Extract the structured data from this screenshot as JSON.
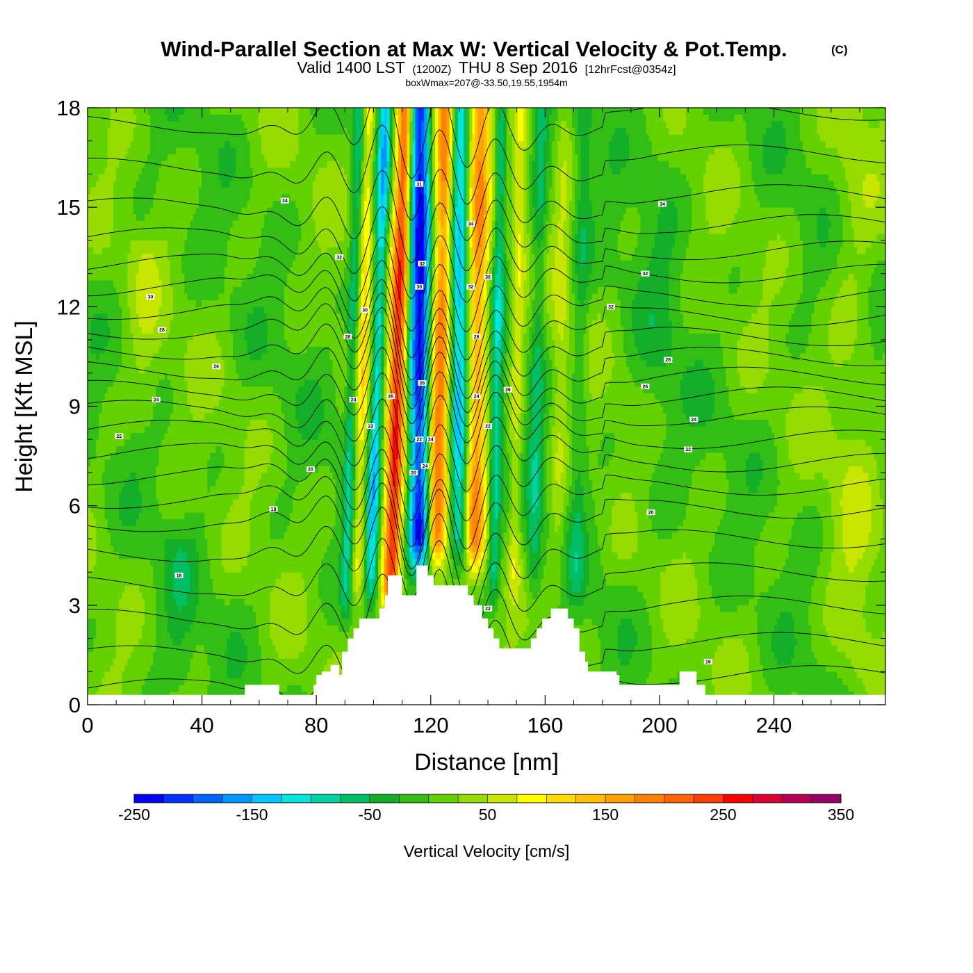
{
  "title": {
    "main": "Wind-Parallel Section at Max W: Vertical Velocity & Pot.Temp.",
    "copyright": "(C)",
    "valid_prefix": "Valid 1400 LST",
    "valid_utc": "(1200Z)",
    "valid_date": "THU 8 Sep 2016",
    "forecast": "[12hrFcst@0354z]",
    "box_wmax": "boxWmax=207@-33.50,19.55,1954m"
  },
  "colors": {
    "contour": "#000000",
    "terrain": "#ffffff",
    "frame": "#000000"
  },
  "chart_data": {
    "type": "heatmap",
    "xlabel": "Distance [nm]",
    "ylabel": "Height [Kft MSL]",
    "xlim": [
      0,
      279
    ],
    "ylim": [
      0,
      18
    ],
    "x_ticks": [
      "0",
      "40",
      "80",
      "120",
      "160",
      "200",
      "240"
    ],
    "y_ticks": [
      "0",
      "3",
      "6",
      "9",
      "12",
      "15",
      "18"
    ],
    "x_tick_values": [
      0,
      40,
      80,
      120,
      160,
      200,
      240
    ],
    "y_tick_values": [
      0,
      3,
      6,
      9,
      12,
      15,
      18
    ],
    "colorbar": {
      "label": "Vertical Velocity [cm/s]",
      "tick_labels": [
        "-250",
        "-150",
        "-50",
        "50",
        "150",
        "250",
        "350"
      ],
      "tick_values": [
        -250,
        -150,
        -50,
        50,
        150,
        250,
        350
      ],
      "min": -250,
      "max": 350,
      "step": 25,
      "colors": [
        "#0000ff",
        "#0032ff",
        "#0064ff",
        "#0096ff",
        "#00c8ff",
        "#00e6dc",
        "#00d2a0",
        "#00be64",
        "#14af28",
        "#32be14",
        "#64d200",
        "#96dc00",
        "#c8e600",
        "#ffff00",
        "#ffdc00",
        "#ffbe00",
        "#ffa000",
        "#ff8200",
        "#ff6400",
        "#ff3c00",
        "#ff0000",
        "#dc0032",
        "#b40050",
        "#960064"
      ]
    },
    "terrain_steps": [
      [
        0,
        0.3
      ],
      [
        55,
        0.6
      ],
      [
        67,
        0.3
      ],
      [
        79,
        0.6
      ],
      [
        80,
        0.9
      ],
      [
        82,
        1.0
      ],
      [
        85,
        1.2
      ],
      [
        88,
        0.9
      ],
      [
        89,
        1.6
      ],
      [
        91,
        2.0
      ],
      [
        93,
        2.3
      ],
      [
        95,
        2.6
      ],
      [
        102,
        2.9
      ],
      [
        104,
        3.3
      ],
      [
        105,
        3.9
      ],
      [
        110,
        3.3
      ],
      [
        115,
        4.2
      ],
      [
        119,
        3.9
      ],
      [
        121,
        3.6
      ],
      [
        133,
        3.3
      ],
      [
        135,
        3.0
      ],
      [
        138,
        2.6
      ],
      [
        140,
        2.3
      ],
      [
        142,
        2.0
      ],
      [
        144,
        1.7
      ],
      [
        155,
        2.0
      ],
      [
        157,
        2.3
      ],
      [
        159,
        2.6
      ],
      [
        162,
        2.9
      ],
      [
        168,
        2.6
      ],
      [
        170,
        2.3
      ],
      [
        172,
        1.6
      ],
      [
        174,
        1.3
      ],
      [
        175,
        1.0
      ],
      [
        185,
        0.9
      ],
      [
        186,
        0.6
      ],
      [
        207,
        1.0
      ],
      [
        213,
        0.6
      ],
      [
        216,
        0.3
      ],
      [
        279,
        0.3
      ]
    ],
    "w_features": [
      {
        "x": 108,
        "y_bottom": 2.5,
        "y_top": 18,
        "sigma_nm": 2.2,
        "w": 240,
        "tilt_nm_per_kft": 0.35
      },
      {
        "x": 116,
        "y_bottom": 4,
        "y_top": 18,
        "sigma_nm": 2.6,
        "w": -240,
        "tilt_nm_per_kft": 0
      },
      {
        "x": 123,
        "y_bottom": 4,
        "y_top": 18,
        "sigma_nm": 2.4,
        "w": 190,
        "tilt_nm_per_kft": 0.25
      },
      {
        "x": 130,
        "y_bottom": 4,
        "y_top": 18,
        "sigma_nm": 2.2,
        "w": -140,
        "tilt_nm_per_kft": 0
      },
      {
        "x": 136,
        "y_bottom": 4,
        "y_top": 18,
        "sigma_nm": 2.6,
        "w": 160,
        "tilt_nm_per_kft": 0.15
      },
      {
        "x": 101,
        "y_bottom": 3,
        "y_top": 18,
        "sigma_nm": 1.5,
        "w": -130,
        "tilt_nm_per_kft": 0.35
      },
      {
        "x": 96,
        "y_bottom": 3,
        "y_top": 18,
        "sigma_nm": 1.4,
        "w": 90,
        "tilt_nm_per_kft": 0.3
      },
      {
        "x": 92,
        "y_bottom": 2.5,
        "y_top": 18,
        "sigma_nm": 1.3,
        "w": -70,
        "tilt_nm_per_kft": 0.3
      },
      {
        "x": 143,
        "y_bottom": 3,
        "y_top": 18,
        "sigma_nm": 1.5,
        "w": -90,
        "tilt_nm_per_kft": 0.2
      },
      {
        "x": 150,
        "y_bottom": 3,
        "y_top": 18,
        "sigma_nm": 1.6,
        "w": 60,
        "tilt_nm_per_kft": 0.2
      },
      {
        "x": 157,
        "y_bottom": 3,
        "y_top": 18,
        "sigma_nm": 1.8,
        "w": -60,
        "tilt_nm_per_kft": 0.2
      },
      {
        "x": 165,
        "y_bottom": 3,
        "y_top": 18,
        "sigma_nm": 2.0,
        "w": 40,
        "tilt_nm_per_kft": 0.2
      },
      {
        "x": 172,
        "y_bottom": 3,
        "y_top": 18,
        "sigma_nm": 2.0,
        "w": -40,
        "tilt_nm_per_kft": 0.2
      },
      {
        "x": 268,
        "y_bottom": 0,
        "y_top": 18,
        "sigma_nm": 6,
        "w": 30,
        "tilt_nm_per_kft": 0
      },
      {
        "x": 20,
        "y_bottom": 8,
        "y_top": 14,
        "sigma_nm": 4,
        "w": 25,
        "tilt_nm_per_kft": 0
      },
      {
        "x": 32,
        "y_bottom": 0,
        "y_top": 5,
        "sigma_nm": 4,
        "w": -25,
        "tilt_nm_per_kft": 0
      },
      {
        "x": 200,
        "y_bottom": 5,
        "y_top": 18,
        "sigma_nm": 6,
        "w": -20,
        "tilt_nm_per_kft": 0
      }
    ],
    "theta_isentropes": {
      "levels": [
        "15",
        "16",
        "17",
        "18",
        "19",
        "20",
        "21",
        "22",
        "23",
        "24",
        "25",
        "26",
        "27",
        "28",
        "29",
        "30",
        "31",
        "32",
        "33",
        "34",
        "35",
        "36"
      ],
      "base_heights_kft": [
        0.5,
        1.5,
        2.6,
        3.6,
        4.6,
        5.5,
        6.2,
        6.9,
        7.6,
        8.3,
        8.9,
        9.5,
        10.1,
        10.7,
        11.3,
        11.9,
        12.6,
        13.3,
        14.1,
        15.0,
        16.2,
        17.5
      ],
      "wave_center_nm": 118,
      "wave_amplitude_kft": 1.4,
      "wave_half_width_nm": 25
    },
    "contour_labels": [
      {
        "text": "34",
        "x": 69,
        "y": 15.2
      },
      {
        "text": "32",
        "x": 88,
        "y": 13.5
      },
      {
        "text": "30",
        "x": 22,
        "y": 12.3
      },
      {
        "text": "28",
        "x": 26,
        "y": 11.3
      },
      {
        "text": "26",
        "x": 45,
        "y": 10.2
      },
      {
        "text": "24",
        "x": 24,
        "y": 9.2
      },
      {
        "text": "22",
        "x": 11,
        "y": 8.1
      },
      {
        "text": "20",
        "x": 78,
        "y": 7.1
      },
      {
        "text": "18",
        "x": 65,
        "y": 5.9
      },
      {
        "text": "16",
        "x": 32,
        "y": 3.9
      },
      {
        "text": "31",
        "x": 116,
        "y": 15.7
      },
      {
        "text": "34",
        "x": 134,
        "y": 14.5
      },
      {
        "text": "32",
        "x": 117,
        "y": 13.3
      },
      {
        "text": "30",
        "x": 116,
        "y": 12.6
      },
      {
        "text": "32",
        "x": 134,
        "y": 12.6
      },
      {
        "text": "30",
        "x": 140,
        "y": 12.9
      },
      {
        "text": "30",
        "x": 97,
        "y": 11.9
      },
      {
        "text": "28",
        "x": 91,
        "y": 11.1
      },
      {
        "text": "26",
        "x": 136,
        "y": 11.1
      },
      {
        "text": "26",
        "x": 117,
        "y": 9.7
      },
      {
        "text": "26",
        "x": 106,
        "y": 9.3
      },
      {
        "text": "24",
        "x": 93,
        "y": 9.2
      },
      {
        "text": "24",
        "x": 136,
        "y": 9.3
      },
      {
        "text": "26",
        "x": 147,
        "y": 9.5
      },
      {
        "text": "22",
        "x": 99,
        "y": 8.4
      },
      {
        "text": "22",
        "x": 140,
        "y": 8.4
      },
      {
        "text": "22",
        "x": 116,
        "y": 8.0
      },
      {
        "text": "24",
        "x": 120,
        "y": 8.0
      },
      {
        "text": "20",
        "x": 114,
        "y": 7.0
      },
      {
        "text": "24",
        "x": 118,
        "y": 7.2
      },
      {
        "text": "22",
        "x": 140,
        "y": 2.9
      },
      {
        "text": "34",
        "x": 201,
        "y": 15.1
      },
      {
        "text": "32",
        "x": 195,
        "y": 13.0
      },
      {
        "text": "32",
        "x": 183,
        "y": 12.0
      },
      {
        "text": "28",
        "x": 203,
        "y": 10.4
      },
      {
        "text": "26",
        "x": 195,
        "y": 9.6
      },
      {
        "text": "24",
        "x": 212,
        "y": 8.6
      },
      {
        "text": "22",
        "x": 210,
        "y": 7.7
      },
      {
        "text": "20",
        "x": 197,
        "y": 5.8
      },
      {
        "text": "16",
        "x": 217,
        "y": 1.3
      }
    ]
  }
}
